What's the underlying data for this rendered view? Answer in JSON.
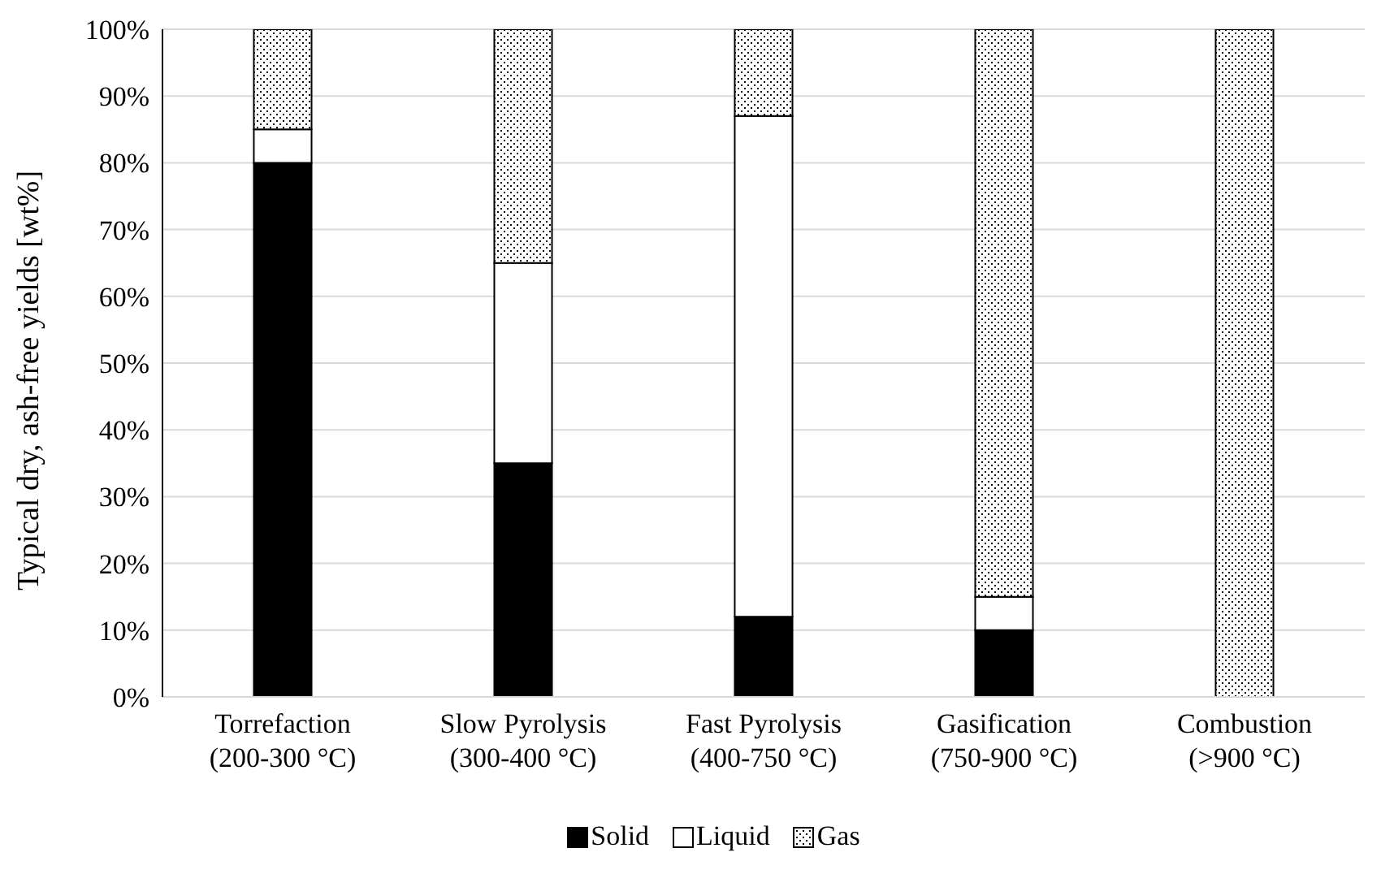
{
  "chart_data": {
    "type": "bar",
    "stacked": true,
    "ylabel": "Typical dry, ash-free yields [wt%]",
    "categories": [
      "Torrefaction\n(200-300 °C)",
      "Slow Pyrolysis\n(300-400 °C)",
      "Fast Pyrolysis\n(400-750 °C)",
      "Gasification\n(750-900 °C)",
      "Combustion\n(>900 °C)"
    ],
    "series": [
      {
        "name": "Solid",
        "color": "#000000",
        "values": [
          80,
          35,
          12,
          10,
          0
        ]
      },
      {
        "name": "Liquid",
        "color": "#ffffff",
        "values": [
          5,
          30,
          75,
          5,
          0
        ]
      },
      {
        "name": "Gas",
        "color": "#000000",
        "values": [
          15,
          35,
          13,
          85,
          100
        ]
      }
    ],
    "ylim": [
      0,
      100
    ],
    "yticks": [
      {
        "value": 0,
        "label": "0%"
      },
      {
        "value": 10,
        "label": "10%"
      },
      {
        "value": 20,
        "label": "20%"
      },
      {
        "value": 30,
        "label": "30%"
      },
      {
        "value": 40,
        "label": "40%"
      },
      {
        "value": 50,
        "label": "50%"
      },
      {
        "value": 60,
        "label": "60%"
      },
      {
        "value": 70,
        "label": "70%"
      },
      {
        "value": 80,
        "label": "80%"
      },
      {
        "value": 90,
        "label": "90%"
      },
      {
        "value": 100,
        "label": "100%"
      }
    ],
    "grid": "y",
    "legend": "bottom"
  }
}
